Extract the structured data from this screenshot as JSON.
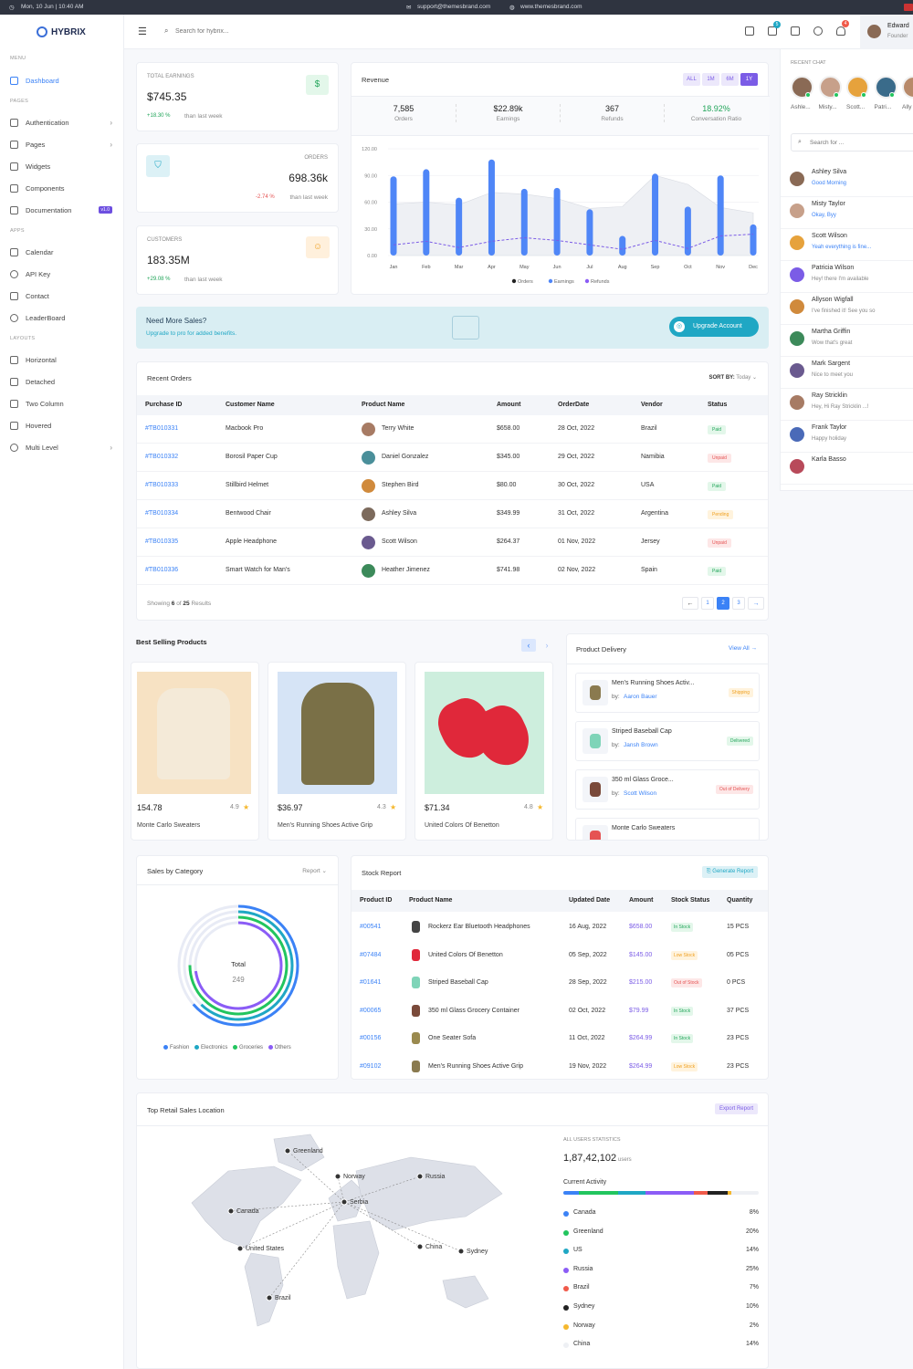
{
  "topbar": {
    "datetime": "Mon, 10 Jun | 10:40 AM",
    "email": "support@themesbrand.com",
    "site": "www.themesbrand.com"
  },
  "brand": {
    "name": "HYBRIX"
  },
  "sidebar": {
    "menu_label": "MENU",
    "pages_label": "PAGES",
    "apps_label": "APPS",
    "layouts_label": "LAYOUTS",
    "dashboard": "Dashboard",
    "authentication": "Authentication",
    "pages": "Pages",
    "widgets": "Widgets",
    "components": "Components",
    "documentation": "Documentation",
    "doc_badge": "v1.0",
    "calendar": "Calendar",
    "api_key": "API Key",
    "contact": "Contact",
    "leaderboard": "LeaderBoard",
    "horizontal": "Horizontal",
    "detached": "Detached",
    "two_column": "Two Column",
    "hovered": "Hovered",
    "multi_level": "Multi Level"
  },
  "header": {
    "search_placeholder": "Search for hybrix...",
    "cart_count": "5",
    "notif_count": "4",
    "user_name": "Edward",
    "user_role": "Founder"
  },
  "stats": {
    "earnings": {
      "label": "TOTAL EARNINGS",
      "value": "$745.35",
      "change": "+18.30 %",
      "note": "than last week"
    },
    "orders": {
      "label": "ORDERS",
      "value": "698.36k",
      "change": "-2.74 %",
      "note": "than last week"
    },
    "customers": {
      "label": "CUSTOMERS",
      "value": "183.35M",
      "change": "+29.08 %",
      "note": "than last week"
    }
  },
  "revenue": {
    "title": "Revenue",
    "filters": [
      "ALL",
      "1M",
      "6M",
      "1Y"
    ],
    "summary": [
      {
        "value": "7,585",
        "label": "Orders"
      },
      {
        "value": "$22.89k",
        "label": "Earnings"
      },
      {
        "value": "367",
        "label": "Refunds"
      },
      {
        "value": "18.92%",
        "label": "Conversation Ratio"
      }
    ],
    "legend": [
      "Orders",
      "Earnings",
      "Refunds"
    ]
  },
  "chart_data": {
    "type": "bar",
    "categories": [
      "Jan",
      "Feb",
      "Mar",
      "Apr",
      "May",
      "Jun",
      "Jul",
      "Aug",
      "Sep",
      "Oct",
      "Nov",
      "Dec"
    ],
    "ylim": [
      0,
      120
    ],
    "yticks": [
      "0.00",
      "30.00",
      "60.00",
      "90.00",
      "120.00"
    ],
    "series": [
      {
        "name": "Orders",
        "values": [
          89,
          97,
          65,
          108,
          75,
          76,
          52,
          22,
          92,
          55,
          90,
          35
        ]
      },
      {
        "name": "Earnings",
        "values": [
          58,
          60,
          57,
          71,
          69,
          64,
          53,
          55,
          90,
          80,
          54,
          48
        ]
      },
      {
        "name": "Refunds",
        "values": [
          12,
          16,
          9,
          16,
          20,
          17,
          12,
          7,
          17,
          8,
          22,
          24
        ]
      }
    ]
  },
  "promo": {
    "title": "Need More Sales?",
    "subtitle": "Upgrade to pro for added benefits.",
    "button": "Upgrade Account"
  },
  "orders": {
    "title": "Recent Orders",
    "sort_label": "SORT BY:",
    "sort_value": "Today",
    "columns": [
      "Purchase ID",
      "Customer Name",
      "Product Name",
      "Amount",
      "OrderDate",
      "Vendor",
      "Status"
    ],
    "rows": [
      {
        "id": "#TB010331",
        "product": "Macbook Pro",
        "customer": "Terry White",
        "amount": "$658.00",
        "date": "28 Oct, 2022",
        "vendor": "Brazil",
        "status": "Paid"
      },
      {
        "id": "#TB010332",
        "product": "Borosil Paper Cup",
        "customer": "Daniel Gonzalez",
        "amount": "$345.00",
        "date": "29 Oct, 2022",
        "vendor": "Namibia",
        "status": "Unpaid"
      },
      {
        "id": "#TB010333",
        "product": "Stillbird Helmet",
        "customer": "Stephen Bird",
        "amount": "$80.00",
        "date": "30 Oct, 2022",
        "vendor": "USA",
        "status": "Paid"
      },
      {
        "id": "#TB010334",
        "product": "Bentwood Chair",
        "customer": "Ashley Silva",
        "amount": "$349.99",
        "date": "31 Oct, 2022",
        "vendor": "Argentina",
        "status": "Pending"
      },
      {
        "id": "#TB010335",
        "product": "Apple Headphone",
        "customer": "Scott Wilson",
        "amount": "$264.37",
        "date": "01 Nov, 2022",
        "vendor": "Jersey",
        "status": "Unpaid"
      },
      {
        "id": "#TB010336",
        "product": "Smart Watch for Man's",
        "customer": "Heather Jimenez",
        "amount": "$741.98",
        "date": "02 Nov, 2022",
        "vendor": "Spain",
        "status": "Paid"
      }
    ],
    "footer_showing": "Showing",
    "footer_count": "6",
    "footer_of": "of",
    "footer_total": "25",
    "footer_results": "Results",
    "pages": [
      "←",
      "1",
      "2",
      "3",
      "→"
    ]
  },
  "best_selling": {
    "title": "Best Selling Products",
    "products": [
      {
        "price": "154.78",
        "rating": "4.9",
        "name": "Monte Carlo Sweaters"
      },
      {
        "price": "$36.97",
        "rating": "4.3",
        "name": "Men's Running Shoes Active Grip"
      },
      {
        "price": "$71.34",
        "rating": "4.8",
        "name": "United Colors Of Benetton"
      }
    ]
  },
  "delivery": {
    "title": "Product Delivery",
    "view_all": "View All",
    "items": [
      {
        "name": "Men's Running Shoes Activ...",
        "by": "by:",
        "person": "Aaron Bauer",
        "status": "Shipping"
      },
      {
        "name": "Striped Baseball Cap",
        "by": "by:",
        "person": "Jansh Brown",
        "status": "Delivered"
      },
      {
        "name": "350 ml Glass Groce...",
        "by": "by:",
        "person": "Scott Wilson",
        "status": "Out of Delivery"
      },
      {
        "name": "Monte Carlo Sweaters",
        "by": "",
        "person": "",
        "status": ""
      }
    ]
  },
  "sales_category": {
    "title": "Sales by Category",
    "report": "Report",
    "total_label": "Total",
    "total": "249",
    "legend": [
      "Fashion",
      "Electronics",
      "Groceries",
      "Others"
    ]
  },
  "stock": {
    "title": "Stock Report",
    "button": "Generate Report",
    "columns": [
      "Product ID",
      "Product Name",
      "Updated Date",
      "Amount",
      "Stock Status",
      "Quantity"
    ],
    "rows": [
      {
        "id": "#00541",
        "name": "Rockerz Ear Bluetooth Headphones",
        "date": "16 Aug, 2022",
        "amount": "$658.00",
        "status": "In Stock",
        "qty": "15 PCS"
      },
      {
        "id": "#07484",
        "name": "United Colors Of Benetton",
        "date": "05 Sep, 2022",
        "amount": "$145.00",
        "status": "Low Stock",
        "qty": "05 PCS"
      },
      {
        "id": "#01641",
        "name": "Striped Baseball Cap",
        "date": "28 Sep, 2022",
        "amount": "$215.00",
        "status": "Out of Stock",
        "qty": "0 PCS"
      },
      {
        "id": "#00065",
        "name": "350 ml Glass Grocery Container",
        "date": "02 Oct, 2022",
        "amount": "$79.99",
        "status": "In Stock",
        "qty": "37 PCS"
      },
      {
        "id": "#00156",
        "name": "One Seater Sofa",
        "date": "11 Oct, 2022",
        "amount": "$264.99",
        "status": "In Stock",
        "qty": "23 PCS"
      },
      {
        "id": "#09102",
        "name": "Men's Running Shoes Active Grip",
        "date": "19 Nov, 2022",
        "amount": "$264.99",
        "status": "Low Stock",
        "qty": "23 PCS"
      }
    ]
  },
  "locations": {
    "title": "Top Retail Sales Location",
    "button": "Export Report",
    "stats_label": "ALL USERS STATISTICS",
    "users": "1,87,42,102",
    "users_unit": "users",
    "activity_label": "Current Activity",
    "countries": [
      {
        "name": "Canada",
        "pct": "8%",
        "color": "#3b82f6"
      },
      {
        "name": "Greenland",
        "pct": "20%",
        "color": "#22c55e"
      },
      {
        "name": "US",
        "pct": "14%",
        "color": "#1fa7c4"
      },
      {
        "name": "Russia",
        "pct": "25%",
        "color": "#8b5cf6"
      },
      {
        "name": "Brazil",
        "pct": "7%",
        "color": "#f05a4a"
      },
      {
        "name": "Sydney",
        "pct": "10%",
        "color": "#222222"
      },
      {
        "name": "Norway",
        "pct": "2%",
        "color": "#f5b82e"
      },
      {
        "name": "China",
        "pct": "14%",
        "color": "#eef0f4"
      }
    ],
    "map_labels": [
      "Greenland",
      "Norway",
      "Russia",
      "Canada",
      "Serbia",
      "United States",
      "China",
      "Sydney",
      "Brazil"
    ]
  },
  "chat": {
    "title": "RECENT CHAT",
    "search_placeholder": "Search for ...",
    "avatars": [
      "Ashle...",
      "Misty...",
      "Scott...",
      "Patri...",
      "Ally"
    ],
    "contacts": [
      {
        "name": "Ashley Silva",
        "msg": "Good Morning",
        "color": "#3b82f6"
      },
      {
        "name": "Misty Taylor",
        "msg": "Okay, Byy",
        "color": "#3b82f6"
      },
      {
        "name": "Scott Wilson",
        "msg": "Yeah everything is fine...",
        "color": "#3b82f6"
      },
      {
        "name": "Patricia Wilson",
        "msg": "Hey! there I'm available",
        "color": "#888"
      },
      {
        "name": "Allyson Wigfall",
        "msg": "I've finished it! See you so",
        "color": "#888"
      },
      {
        "name": "Martha Griffin",
        "msg": "Wow that's great",
        "color": "#888"
      },
      {
        "name": "Mark Sargent",
        "msg": "Nice to meet you",
        "color": "#888"
      },
      {
        "name": "Ray Stricklin",
        "msg": "Hey, Hi Ray Stricklin ...!",
        "color": "#888"
      },
      {
        "name": "Frank Taylor",
        "msg": "Happy holiday",
        "color": "#888"
      },
      {
        "name": "Karla Basso",
        "msg": "",
        "color": "#888"
      }
    ]
  }
}
